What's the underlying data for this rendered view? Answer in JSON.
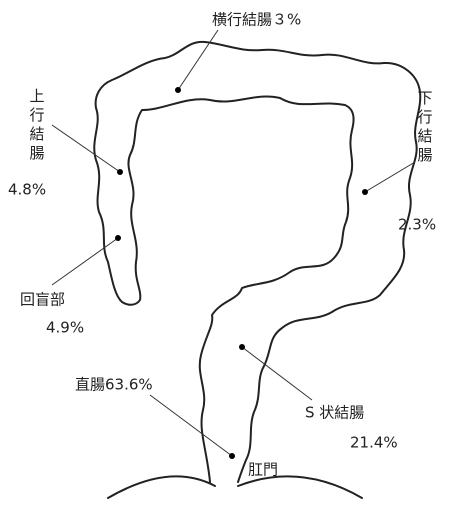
{
  "title": "横行結腸３%",
  "regions": [
    {
      "name": "上行結腸",
      "percent": "4.8%"
    },
    {
      "name": "回盲部",
      "percent": "4.9%"
    },
    {
      "name": "下行結腸",
      "percent": "2.3%"
    },
    {
      "name": "直腸63.6%"
    },
    {
      "name": "S 状結腸",
      "percent": "21.4%"
    },
    {
      "name": "肛門"
    }
  ]
}
